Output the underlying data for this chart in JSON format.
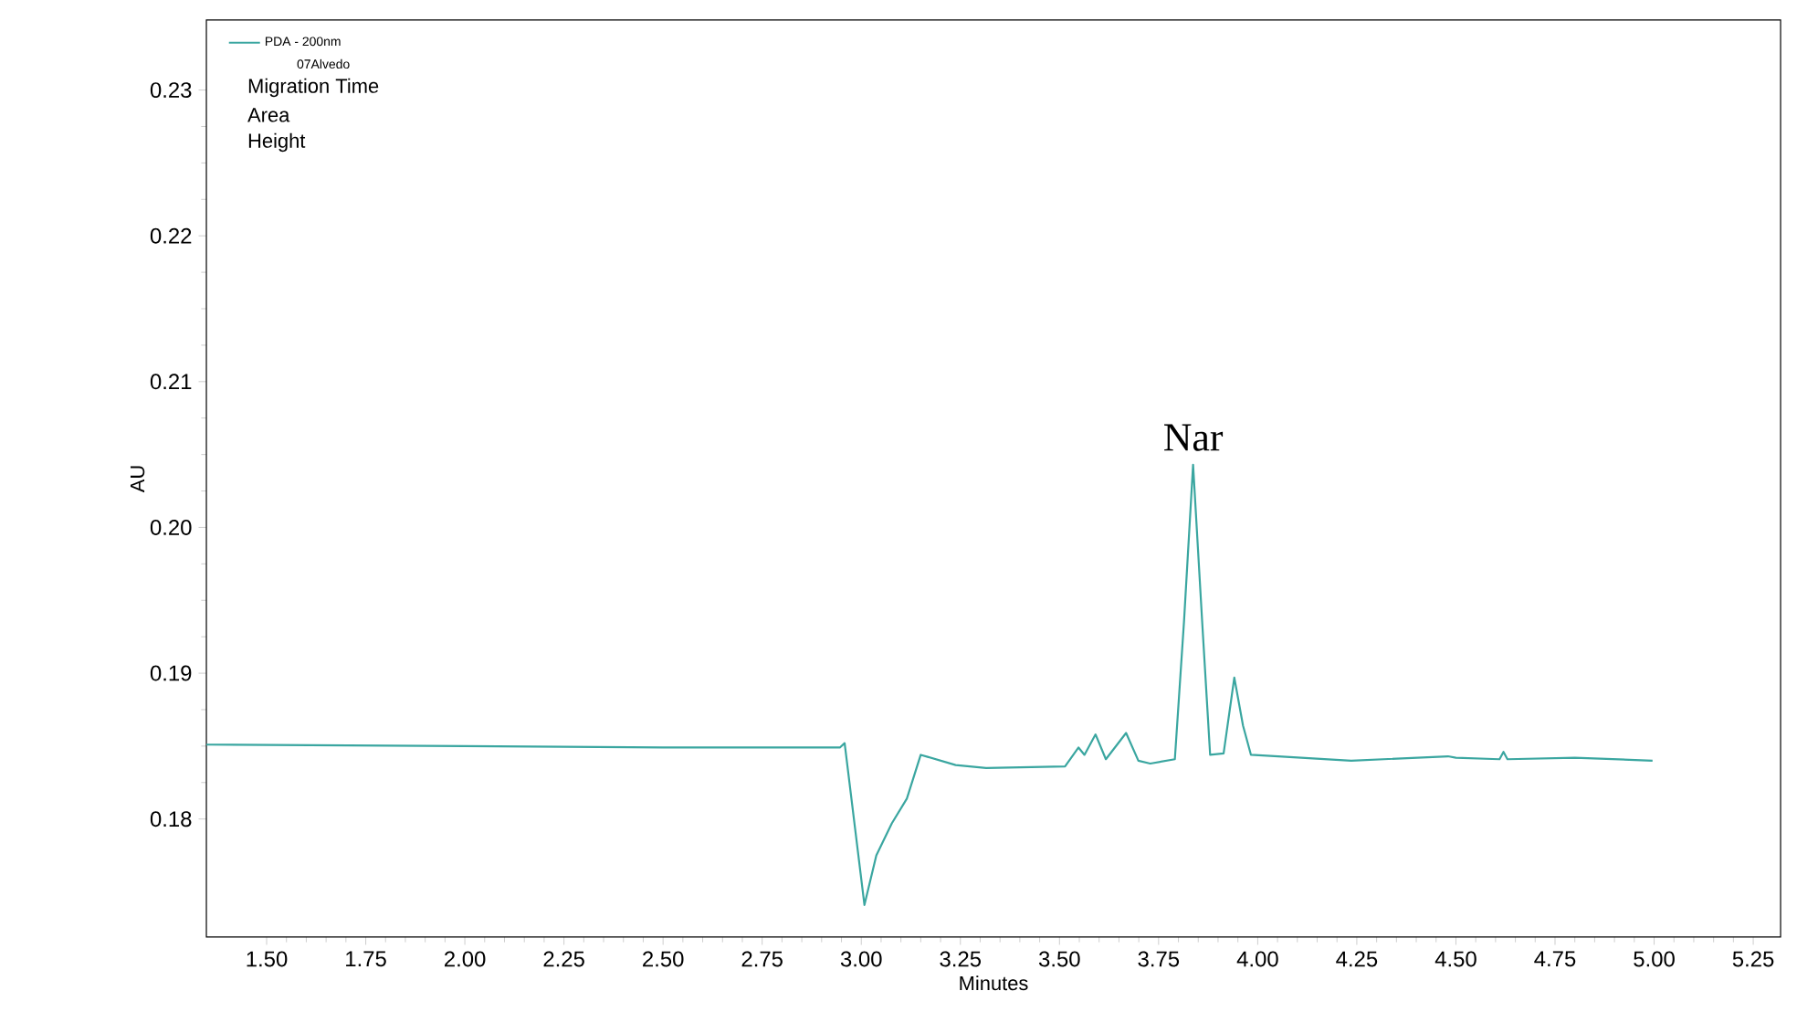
{
  "chart_data": {
    "type": "line",
    "xlabel": "Minutes",
    "ylabel": "AU",
    "series": [
      {
        "name": "PDA - 200nm",
        "color": "#3aa6a0",
        "x": [
          1.348,
          2.0,
          2.5,
          2.946,
          2.958,
          3.008,
          3.038,
          3.077,
          3.115,
          3.15,
          3.238,
          3.315,
          3.514,
          3.548,
          3.563,
          3.591,
          3.617,
          3.668,
          3.699,
          3.729,
          3.791,
          3.814,
          3.837,
          3.86,
          3.88,
          3.914,
          3.941,
          3.963,
          3.983,
          4.052,
          4.236,
          4.48,
          4.5,
          4.61,
          4.62,
          4.63,
          4.8,
          4.996
        ],
        "values": [
          0.1851,
          0.185,
          0.1849,
          0.1849,
          0.1852,
          0.1741,
          0.1775,
          0.1797,
          0.1814,
          0.1844,
          0.1837,
          0.1835,
          0.1836,
          0.1849,
          0.1844,
          0.1858,
          0.1841,
          0.1859,
          0.184,
          0.1838,
          0.1841,
          0.1935,
          0.2043,
          0.1935,
          0.1844,
          0.1845,
          0.1897,
          0.1864,
          0.1844,
          0.1843,
          0.184,
          0.1843,
          0.1842,
          0.1841,
          0.1846,
          0.1841,
          0.1842,
          0.184
        ]
      }
    ],
    "annotations": [
      {
        "text": "Nar",
        "x": 3.837,
        "y": 0.2043
      },
      "07Alvedo",
      "Migration Time",
      "Area",
      "Height"
    ],
    "xlim": [
      1.348,
      5.319
    ],
    "ylim": [
      0.1719,
      0.2348
    ],
    "xticks": [
      {
        "value": 1.5,
        "label": "1.50"
      },
      {
        "value": 1.75,
        "label": "1.75"
      },
      {
        "value": 2.0,
        "label": "2.00"
      },
      {
        "value": 2.25,
        "label": "2.25"
      },
      {
        "value": 2.5,
        "label": "2.50"
      },
      {
        "value": 2.75,
        "label": "2.75"
      },
      {
        "value": 3.0,
        "label": "3.00"
      },
      {
        "value": 3.25,
        "label": "3.25"
      },
      {
        "value": 3.5,
        "label": "3.50"
      },
      {
        "value": 3.75,
        "label": "3.75"
      },
      {
        "value": 4.0,
        "label": "4.00"
      },
      {
        "value": 4.25,
        "label": "4.25"
      },
      {
        "value": 4.5,
        "label": "4.50"
      },
      {
        "value": 4.75,
        "label": "4.75"
      },
      {
        "value": 5.0,
        "label": "5.00"
      },
      {
        "value": 5.25,
        "label": "5.25"
      }
    ],
    "yticks": [
      {
        "value": 0.18,
        "label": "0.18"
      },
      {
        "value": 0.19,
        "label": "0.19"
      },
      {
        "value": 0.2,
        "label": "0.20"
      },
      {
        "value": 0.21,
        "label": "0.21"
      },
      {
        "value": 0.22,
        "label": "0.22"
      },
      {
        "value": 0.23,
        "label": "0.23"
      }
    ],
    "legend": "top left",
    "grid": false,
    "marker": "none",
    "line_style": "solid"
  }
}
